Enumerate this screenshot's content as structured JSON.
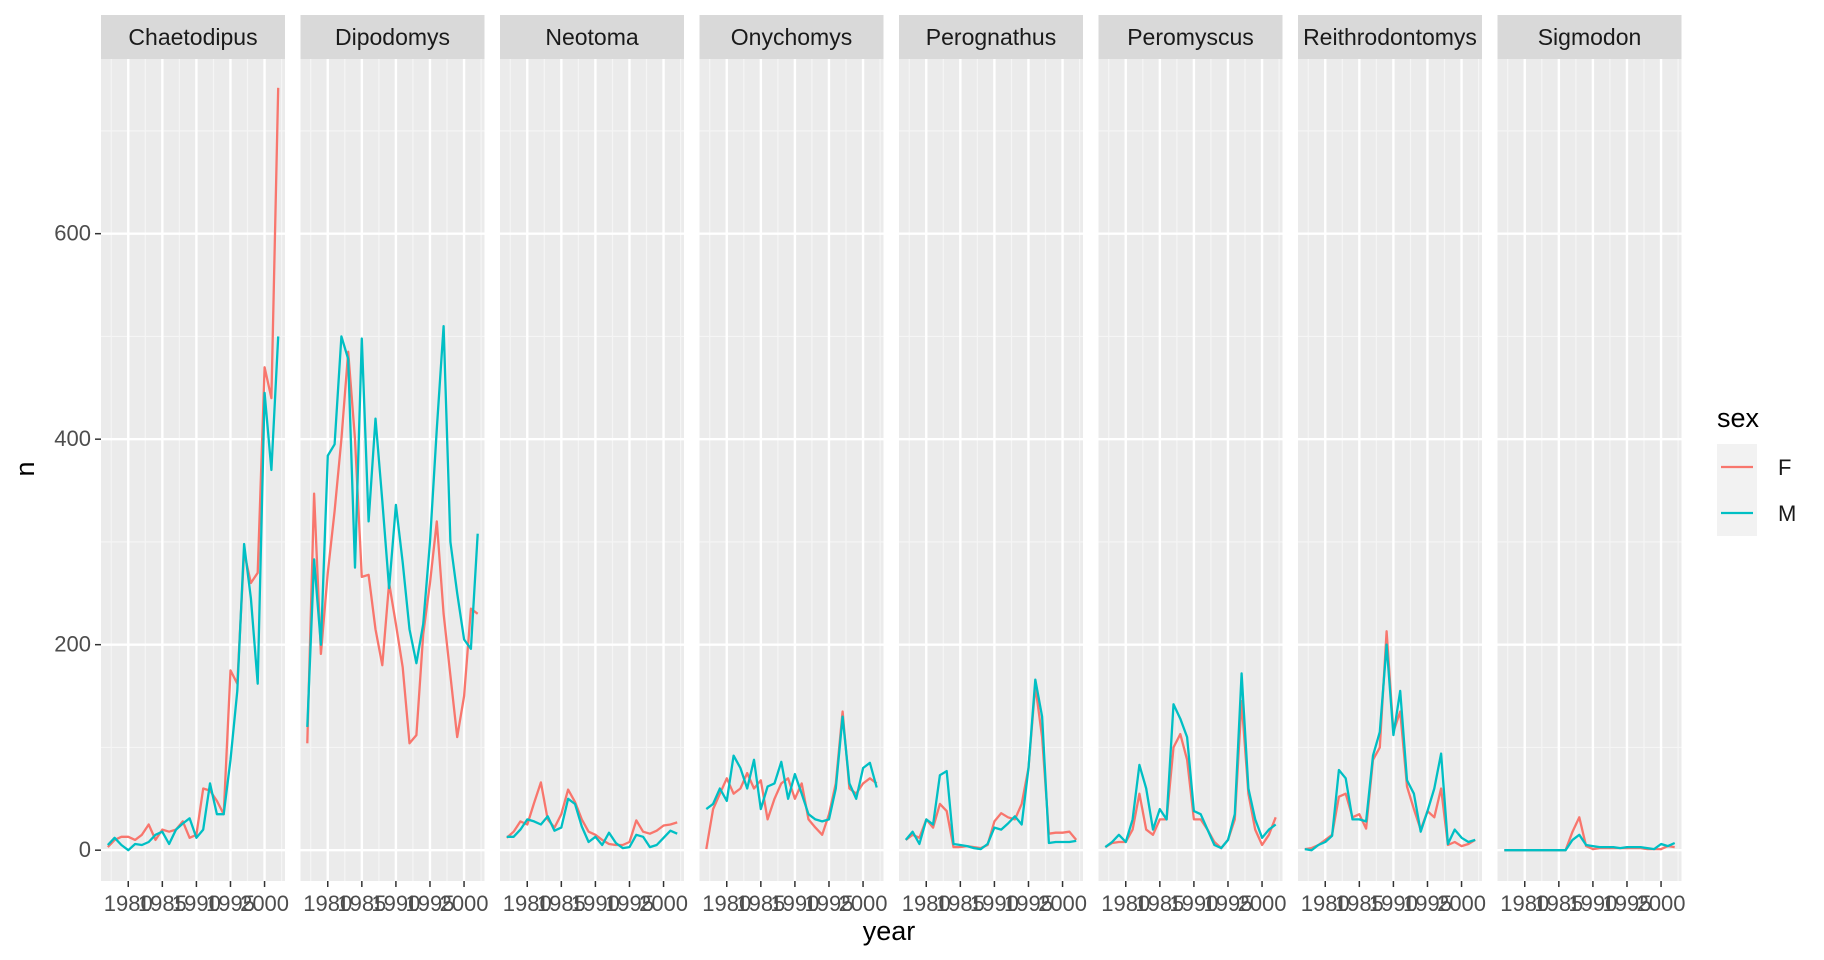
{
  "chart_data": {
    "type": "line",
    "facet_var": "genus",
    "facets": [
      "Chaetodipus",
      "Dipodomys",
      "Neotoma",
      "Onychomys",
      "Perognathus",
      "Peromyscus",
      "Reithrodontomys",
      "Sigmodon"
    ],
    "xlabel": "year",
    "ylabel": "n",
    "xlim": [
      1976,
      2003
    ],
    "ylim": [
      -30,
      770
    ],
    "x_ticks": [
      1980,
      1985,
      1990,
      1995,
      2000
    ],
    "y_ticks": [
      0,
      200,
      400,
      600
    ],
    "legend": {
      "title": "sex",
      "position": "right",
      "entries": [
        "F",
        "M"
      ]
    },
    "grid": true,
    "series_colors": {
      "F": "#F8766D",
      "M": "#00BFC4"
    },
    "panels": [
      {
        "facet": "Chaetodipus",
        "series": [
          {
            "name": "F",
            "x": [
              1977,
              1978,
              1979,
              1980,
              1981,
              1982,
              1983,
              1984,
              1985,
              1986,
              1987,
              1988,
              1989,
              1990,
              1991,
              1992,
              1993,
              1994,
              1995,
              1996,
              1997,
              1998,
              1999,
              2000,
              2001,
              2002
            ],
            "y": [
              3,
              10,
              13,
              13,
              10,
              15,
              25,
              10,
              20,
              18,
              20,
              28,
              12,
              15,
              60,
              58,
              48,
              35,
              175,
              162,
              290,
              260,
              270,
              470,
              440,
              742
            ]
          },
          {
            "name": "M",
            "x": [
              1977,
              1978,
              1979,
              1980,
              1981,
              1982,
              1983,
              1984,
              1985,
              1986,
              1987,
              1988,
              1989,
              1990,
              1991,
              1992,
              1993,
              1994,
              1995,
              1996,
              1997,
              1998,
              1999,
              2000,
              2001,
              2002
            ],
            "y": [
              5,
              12,
              5,
              0,
              6,
              5,
              8,
              15,
              18,
              6,
              20,
              26,
              31,
              12,
              20,
              65,
              35,
              35,
              88,
              155,
              298,
              245,
              162,
              445,
              370,
              500
            ]
          }
        ]
      },
      {
        "facet": "Dipodomys",
        "series": [
          {
            "name": "F",
            "x": [
              1977,
              1978,
              1979,
              1980,
              1981,
              1982,
              1983,
              1984,
              1985,
              1986,
              1987,
              1988,
              1989,
              1990,
              1991,
              1992,
              1993,
              1994,
              1995,
              1996,
              1997,
              1998,
              1999,
              2000,
              2001,
              2002
            ],
            "y": [
              104,
              347,
              191,
              270,
              330,
              400,
              485,
              400,
              266,
              268,
              215,
              180,
              260,
              220,
              178,
              104,
              112,
              210,
              260,
              320,
              230,
              170,
              110,
              150,
              235,
              230
            ]
          },
          {
            "name": "M",
            "x": [
              1977,
              1978,
              1979,
              1980,
              1981,
              1982,
              1983,
              1984,
              1985,
              1986,
              1987,
              1988,
              1989,
              1990,
              1991,
              1992,
              1993,
              1994,
              1995,
              1996,
              1997,
              1998,
              1999,
              2000,
              2001,
              2002
            ],
            "y": [
              120,
              283,
              200,
              384,
              395,
              500,
              478,
              275,
              498,
              320,
              420,
              340,
              255,
              336,
              280,
              215,
              182,
              220,
              300,
              410,
              510,
              300,
              250,
              205,
              196,
              308
            ]
          }
        ]
      },
      {
        "facet": "Neotoma",
        "series": [
          {
            "name": "F",
            "x": [
              1977,
              1978,
              1979,
              1980,
              1981,
              1982,
              1983,
              1984,
              1985,
              1986,
              1987,
              1988,
              1989,
              1990,
              1991,
              1992,
              1993,
              1994,
              1995,
              1996,
              1997,
              1998,
              1999,
              2000,
              2001,
              2002
            ],
            "y": [
              12,
              18,
              28,
              25,
              46,
              66,
              30,
              22,
              35,
              59,
              47,
              30,
              18,
              15,
              10,
              6,
              5,
              5,
              8,
              29,
              18,
              16,
              19,
              24,
              25,
              27
            ]
          },
          {
            "name": "M",
            "x": [
              1977,
              1978,
              1979,
              1980,
              1981,
              1982,
              1983,
              1984,
              1985,
              1986,
              1987,
              1988,
              1989,
              1990,
              1991,
              1992,
              1993,
              1994,
              1995,
              1996,
              1997,
              1998,
              1999,
              2000,
              2001,
              2002
            ],
            "y": [
              13,
              13,
              20,
              30,
              28,
              25,
              33,
              19,
              22,
              50,
              45,
              23,
              8,
              13,
              5,
              17,
              7,
              2,
              3,
              15,
              13,
              3,
              5,
              12,
              19,
              16
            ]
          }
        ]
      },
      {
        "facet": "Onychomys",
        "series": [
          {
            "name": "F",
            "x": [
              1977,
              1978,
              1979,
              1980,
              1981,
              1982,
              1983,
              1984,
              1985,
              1986,
              1987,
              1988,
              1989,
              1990,
              1991,
              1992,
              1993,
              1994,
              1995,
              1996,
              1997,
              1998,
              1999,
              2000,
              2001,
              2002
            ],
            "y": [
              1,
              40,
              55,
              70,
              55,
              60,
              75,
              60,
              68,
              30,
              50,
              65,
              70,
              50,
              65,
              30,
              22,
              15,
              35,
              65,
              135,
              60,
              55,
              65,
              70,
              65
            ]
          },
          {
            "name": "M",
            "x": [
              1977,
              1978,
              1979,
              1980,
              1981,
              1982,
              1983,
              1984,
              1985,
              1986,
              1987,
              1988,
              1989,
              1990,
              1991,
              1992,
              1993,
              1994,
              1995,
              1996,
              1997,
              1998,
              1999,
              2000,
              2001,
              2002
            ],
            "y": [
              40,
              45,
              60,
              48,
              92,
              80,
              60,
              88,
              40,
              62,
              65,
              86,
              50,
              74,
              55,
              35,
              30,
              28,
              30,
              60,
              130,
              65,
              50,
              80,
              85,
              61
            ]
          }
        ]
      },
      {
        "facet": "Perognathus",
        "series": [
          {
            "name": "F",
            "x": [
              1977,
              1978,
              1979,
              1980,
              1981,
              1982,
              1983,
              1984,
              1985,
              1986,
              1987,
              1988,
              1989,
              1990,
              1991,
              1992,
              1993,
              1994,
              1995,
              1996,
              1997,
              1998,
              1999,
              2000,
              2001,
              2002
            ],
            "y": [
              10,
              15,
              12,
              30,
              22,
              45,
              38,
              3,
              3,
              4,
              3,
              2,
              5,
              28,
              36,
              32,
              30,
              45,
              80,
              160,
              110,
              16,
              17,
              17,
              18,
              10
            ]
          },
          {
            "name": "M",
            "x": [
              1977,
              1978,
              1979,
              1980,
              1981,
              1982,
              1983,
              1984,
              1985,
              1986,
              1987,
              1988,
              1989,
              1990,
              1991,
              1992,
              1993,
              1994,
              1995,
              1996,
              1997,
              1998,
              1999,
              2000,
              2001,
              2002
            ],
            "y": [
              10,
              18,
              6,
              30,
              25,
              73,
              77,
              6,
              5,
              4,
              2,
              1,
              6,
              22,
              20,
              26,
              33,
              25,
              80,
              166,
              130,
              7,
              8,
              8,
              8,
              9
            ]
          }
        ]
      },
      {
        "facet": "Peromyscus",
        "series": [
          {
            "name": "F",
            "x": [
              1977,
              1978,
              1979,
              1980,
              1981,
              1982,
              1983,
              1984,
              1985,
              1986,
              1987,
              1988,
              1989,
              1990,
              1991,
              1992,
              1993,
              1994,
              1995,
              1996,
              1997,
              1998,
              1999,
              2000,
              2001,
              2002
            ],
            "y": [
              3,
              7,
              8,
              8,
              20,
              55,
              20,
              15,
              30,
              30,
              100,
              113,
              88,
              30,
              30,
              20,
              8,
              2,
              10,
              30,
              145,
              55,
              20,
              5,
              15,
              32
            ]
          },
          {
            "name": "M",
            "x": [
              1977,
              1978,
              1979,
              1980,
              1981,
              1982,
              1983,
              1984,
              1985,
              1986,
              1987,
              1988,
              1989,
              1990,
              1991,
              1992,
              1993,
              1994,
              1995,
              1996,
              1997,
              1998,
              1999,
              2000,
              2001,
              2002
            ],
            "y": [
              3,
              8,
              15,
              8,
              30,
              83,
              60,
              20,
              40,
              30,
              142,
              128,
              110,
              38,
              35,
              20,
              5,
              2,
              10,
              35,
              172,
              60,
              30,
              12,
              20,
              25
            ]
          }
        ]
      },
      {
        "facet": "Reithrodontomys",
        "series": [
          {
            "name": "F",
            "x": [
              1977,
              1978,
              1979,
              1980,
              1981,
              1982,
              1983,
              1984,
              1985,
              1986,
              1987,
              1988,
              1989,
              1990,
              1991,
              1992,
              1993,
              1994,
              1995,
              1996,
              1997,
              1998,
              1999,
              2000,
              2001,
              2002
            ],
            "y": [
              1,
              2,
              5,
              10,
              15,
              52,
              55,
              32,
              35,
              21,
              88,
              100,
              213,
              115,
              135,
              62,
              40,
              20,
              38,
              32,
              60,
              5,
              8,
              4,
              6,
              10
            ]
          },
          {
            "name": "M",
            "x": [
              1977,
              1978,
              1979,
              1980,
              1981,
              1982,
              1983,
              1984,
              1985,
              1986,
              1987,
              1988,
              1989,
              1990,
              1991,
              1992,
              1993,
              1994,
              1995,
              1996,
              1997,
              1998,
              1999,
              2000,
              2001,
              2002
            ],
            "y": [
              1,
              0,
              5,
              8,
              14,
              78,
              70,
              30,
              30,
              28,
              92,
              115,
              200,
              112,
              155,
              68,
              55,
              18,
              38,
              60,
              94,
              6,
              20,
              12,
              8,
              10
            ]
          }
        ]
      },
      {
        "facet": "Sigmodon",
        "series": [
          {
            "name": "F",
            "x": [
              1977,
              1978,
              1979,
              1980,
              1981,
              1982,
              1983,
              1984,
              1985,
              1986,
              1987,
              1988,
              1989,
              1990,
              1991,
              1992,
              1993,
              1994,
              1995,
              1996,
              1997,
              1998,
              1999,
              2000,
              2001,
              2002
            ],
            "y": [
              0,
              0,
              0,
              0,
              0,
              0,
              0,
              0,
              0,
              0,
              18,
              32,
              4,
              1,
              2,
              2,
              2,
              2,
              2,
              2,
              2,
              1,
              1,
              1,
              4,
              3
            ]
          },
          {
            "name": "M",
            "x": [
              1977,
              1978,
              1979,
              1980,
              1981,
              1982,
              1983,
              1984,
              1985,
              1986,
              1987,
              1988,
              1989,
              1990,
              1991,
              1992,
              1993,
              1994,
              1995,
              1996,
              1997,
              1998,
              1999,
              2000,
              2001,
              2002
            ],
            "y": [
              0,
              0,
              0,
              0,
              0,
              0,
              0,
              0,
              0,
              0,
              10,
              15,
              5,
              4,
              3,
              3,
              3,
              2,
              3,
              3,
              3,
              2,
              1,
              6,
              4,
              7
            ]
          }
        ]
      }
    ]
  }
}
